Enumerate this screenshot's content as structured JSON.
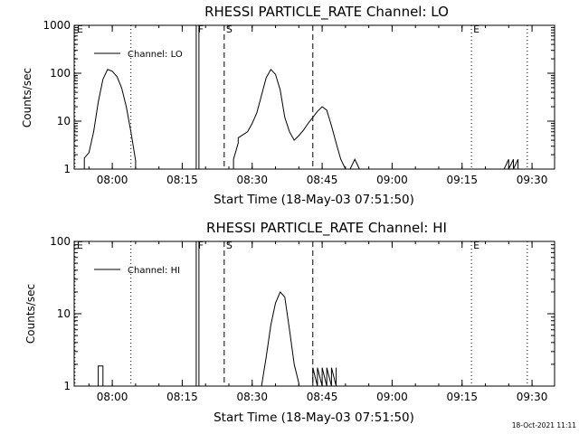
{
  "footer": {
    "timestamp": "18-Oct-2021 11:11"
  },
  "chart_data": [
    {
      "type": "line",
      "title": "RHESSI PARTICLE_RATE Channel: LO",
      "xlabel": "Start Time (18-May-03 07:51:50)",
      "ylabel": "Counts/sec",
      "y_scale": "log",
      "ylim": [
        1,
        1000
      ],
      "xlim_minutes_from_start": [
        0,
        103
      ],
      "x_ticks": [
        "08:00",
        "08:15",
        "08:30",
        "08:45",
        "09:00",
        "09:15",
        "09:30"
      ],
      "y_ticks": [
        "1",
        "10",
        "100",
        "1000"
      ],
      "legend": {
        "label": "Channel: LO",
        "placement": "top-left"
      },
      "markers": [
        {
          "time": "07:52",
          "label": "E",
          "style": "dotted"
        },
        {
          "time": "08:04",
          "label": "",
          "style": "dotted"
        },
        {
          "time": "08:18",
          "label": "F",
          "style": "solid"
        },
        {
          "time": "08:18",
          "label": "",
          "style": "solid"
        },
        {
          "time": "08:24",
          "label": "S",
          "style": "dashed"
        },
        {
          "time": "08:43",
          "label": "",
          "style": "dashed"
        },
        {
          "time": "09:17",
          "label": "E",
          "style": "dotted"
        },
        {
          "time": "09:29",
          "label": "",
          "style": "dotted"
        }
      ],
      "series": [
        {
          "name": "Channel: LO",
          "x": [
            "07:54",
            "07:54",
            "07:55",
            "07:56",
            "07:57",
            "07:58",
            "07:59",
            "08:00",
            "08:01",
            "08:02",
            "08:03",
            "08:04",
            "08:05",
            "08:05",
            "08:26",
            "08:26",
            "08:27",
            "08:27",
            "08:28",
            "08:29",
            "08:30",
            "08:31",
            "08:32",
            "08:33",
            "08:34",
            "08:35",
            "08:36",
            "08:37",
            "08:38",
            "08:39",
            "08:40",
            "08:41",
            "08:42",
            "08:43",
            "08:44",
            "08:45",
            "08:46",
            "08:47",
            "08:48",
            "08:49",
            "08:50",
            "08:51",
            "08:52",
            "08:53",
            "09:24",
            "09:25",
            "09:25",
            "09:26",
            "09:26",
            "09:27",
            "09:27"
          ],
          "y": [
            1,
            1.7,
            2.2,
            6,
            25,
            75,
            120,
            110,
            85,
            50,
            20,
            6,
            1.5,
            1,
            1,
            1.6,
            3.5,
            4.5,
            5.2,
            6,
            9,
            15,
            35,
            80,
            120,
            95,
            45,
            12,
            6,
            4,
            5,
            6.5,
            9,
            12,
            16,
            20,
            17,
            8,
            3.5,
            1.6,
            1,
            1,
            1.6,
            1,
            1,
            1.6,
            1,
            1.6,
            1,
            1.6,
            1
          ]
        }
      ]
    },
    {
      "type": "line",
      "title": "RHESSI PARTICLE_RATE Channel: HI",
      "xlabel": "Start Time (18-May-03 07:51:50)",
      "ylabel": "Counts/sec",
      "y_scale": "log",
      "ylim": [
        1,
        100
      ],
      "xlim_minutes_from_start": [
        0,
        103
      ],
      "x_ticks": [
        "08:00",
        "08:15",
        "08:30",
        "08:45",
        "09:00",
        "09:15",
        "09:30"
      ],
      "y_ticks": [
        "1",
        "10",
        "100"
      ],
      "legend": {
        "label": "Channel: HI",
        "placement": "top-left"
      },
      "markers": [
        {
          "time": "07:52",
          "label": "E",
          "style": "dotted"
        },
        {
          "time": "08:04",
          "label": "",
          "style": "dotted"
        },
        {
          "time": "08:18",
          "label": "F",
          "style": "solid"
        },
        {
          "time": "08:18",
          "label": "",
          "style": "solid"
        },
        {
          "time": "08:24",
          "label": "S",
          "style": "dashed"
        },
        {
          "time": "08:43",
          "label": "",
          "style": "dashed"
        },
        {
          "time": "09:17",
          "label": "E",
          "style": "dotted"
        },
        {
          "time": "09:29",
          "label": "",
          "style": "dotted"
        }
      ],
      "series": [
        {
          "name": "Channel: HI",
          "x": [
            "07:57",
            "07:57",
            "07:58",
            "07:58",
            "08:32",
            "08:33",
            "08:34",
            "08:35",
            "08:36",
            "08:37",
            "08:38",
            "08:39",
            "08:40",
            "08:40",
            "08:43",
            "08:43",
            "08:44",
            "08:44",
            "08:45",
            "08:45",
            "08:46",
            "08:46",
            "08:47",
            "08:47",
            "08:48",
            "08:48"
          ],
          "y": [
            1,
            1.9,
            1.9,
            1,
            1,
            2.5,
            7,
            14,
            20,
            17,
            6,
            2,
            1.1,
            1,
            1,
            1.8,
            1,
            1.8,
            1,
            1.8,
            1,
            1.8,
            1,
            1.8,
            1,
            1.8
          ]
        }
      ]
    }
  ]
}
